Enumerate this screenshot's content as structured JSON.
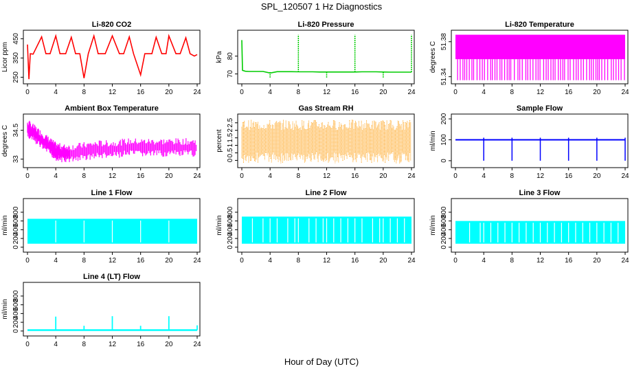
{
  "title": "SPL_120507  1 Hz Diagnostics",
  "xlabel": "Hour of Day (UTC)",
  "chart_data": [
    {
      "type": "line",
      "title": "Li-820 CO2",
      "ylabel": "Licor ppm",
      "color": "#ff0000",
      "xlim": [
        0,
        24
      ],
      "xticks": [
        0,
        4,
        8,
        12,
        16,
        20,
        24
      ],
      "ylim": [
        230,
        480
      ],
      "yticks": [
        250,
        350,
        450
      ],
      "x": [
        0,
        0.2,
        0.4,
        0.8,
        2,
        2.6,
        3.2,
        4,
        4.6,
        5.4,
        6.2,
        6.8,
        7.4,
        8,
        8.6,
        9.4,
        10,
        11,
        12,
        13,
        13.6,
        14.4,
        15,
        16,
        16.6,
        17.6,
        18.2,
        19,
        19.6,
        20,
        21,
        21.6,
        22.4,
        23,
        23.6,
        24
      ],
      "y": [
        420,
        240,
        372,
        370,
        460,
        372,
        372,
        465,
        372,
        372,
        458,
        372,
        372,
        245,
        372,
        465,
        372,
        372,
        465,
        372,
        372,
        460,
        372,
        262,
        372,
        372,
        458,
        372,
        372,
        465,
        372,
        372,
        455,
        372,
        360,
        368
      ]
    },
    {
      "type": "line",
      "title": "Li-820 Pressure",
      "ylabel": "kPa",
      "color": "#00cc00",
      "xlim": [
        0,
        24
      ],
      "xticks": [
        0,
        4,
        8,
        12,
        16,
        20,
        24
      ],
      "ylim": [
        66,
        93
      ],
      "yticks": [
        70,
        80
      ],
      "x": [
        0,
        0.1,
        0.5,
        1,
        2,
        3,
        4,
        5,
        6,
        7,
        8,
        9,
        10,
        11,
        12,
        13,
        14,
        15,
        16,
        17,
        18,
        19,
        20,
        21,
        22,
        23,
        24
      ],
      "y": [
        89,
        72,
        71.5,
        71.4,
        71.4,
        71.4,
        70.5,
        71.3,
        71.3,
        71.3,
        71.2,
        71.2,
        71.2,
        71.1,
        71.1,
        71.1,
        71.1,
        71.1,
        71.1,
        71.2,
        71.2,
        71.2,
        71.1,
        71.0,
        71.0,
        71.0,
        71.0
      ],
      "spikes": [
        {
          "x": 4,
          "y": 68
        },
        {
          "x": 8,
          "y": 92
        },
        {
          "x": 12,
          "y": 68
        },
        {
          "x": 16,
          "y": 92
        },
        {
          "x": 20,
          "y": 68
        },
        {
          "x": 24,
          "y": 92
        }
      ]
    },
    {
      "type": "line",
      "title": "Li-820 Temperature",
      "ylabel": "degrees C",
      "color": "#ff00ff",
      "xlim": [
        0,
        24
      ],
      "xticks": [
        0,
        4,
        8,
        12,
        16,
        20,
        24
      ],
      "ylim": [
        51.335,
        51.39
      ],
      "yticks": [
        51.34,
        51.38
      ],
      "upper": 51.388,
      "lower": 51.36,
      "min": 51.336
    },
    {
      "type": "line",
      "title": "Ambient Box Temperature",
      "ylabel": "degrees C",
      "color": "#ff00ff",
      "xlim": [
        0,
        24
      ],
      "xticks": [
        0,
        4,
        8,
        12,
        16,
        20,
        24
      ],
      "ylim": [
        32.7,
        35.2
      ],
      "yticks": [
        33.0,
        34.5
      ],
      "x": [
        0,
        1,
        2,
        3,
        4,
        5,
        6,
        8,
        10,
        12,
        14,
        16,
        18,
        20,
        22,
        24
      ],
      "y": [
        34.6,
        34.3,
        34.0,
        33.7,
        33.4,
        33.3,
        33.3,
        33.4,
        33.5,
        33.5,
        33.6,
        33.6,
        33.6,
        33.6,
        33.6,
        33.6
      ],
      "spread": 0.35
    },
    {
      "type": "line",
      "title": "Gas Stream RH",
      "ylabel": "percent",
      "color": "#ff9900",
      "xlim": [
        0,
        24
      ],
      "xticks": [
        0,
        4,
        8,
        12,
        16,
        20,
        24
      ],
      "ylim": [
        -0.3,
        2.9
      ],
      "yticks": [
        0.0,
        0.5,
        1.0,
        1.5,
        2.0,
        2.5
      ],
      "center": 1.3,
      "high": 2.7,
      "low": -0.2
    },
    {
      "type": "line",
      "title": "Sample Flow",
      "ylabel": "ml/min",
      "color": "#0000ff",
      "xlim": [
        0,
        24
      ],
      "xticks": [
        0,
        4,
        8,
        12,
        16,
        20,
        24
      ],
      "ylim": [
        -20,
        210
      ],
      "yticks": [
        0,
        100,
        200
      ],
      "baseline": 100,
      "dips": [
        4,
        8,
        12,
        16,
        20,
        24
      ],
      "dip_value": 0
    },
    {
      "type": "area",
      "title": "Line 1 Flow",
      "ylabel": "ml/min",
      "color": "#00ffff",
      "xlim": [
        0,
        24
      ],
      "xticks": [
        0,
        4,
        8,
        12,
        16,
        20,
        24
      ],
      "ylim": [
        -50,
        1050
      ],
      "yticks": [
        0,
        200,
        400,
        600,
        800
      ],
      "upper": 650,
      "lower": 80,
      "gaps": [
        4,
        8,
        12,
        16,
        20
      ]
    },
    {
      "type": "area",
      "title": "Line 2 Flow",
      "ylabel": "ml/min",
      "color": "#00ffff",
      "xlim": [
        0,
        24
      ],
      "xticks": [
        0,
        4,
        8,
        12,
        16,
        20,
        24
      ],
      "ylim": [
        -50,
        1050
      ],
      "yticks": [
        0,
        200,
        400,
        600,
        800
      ],
      "upper": 700,
      "lower": 80,
      "gaps": [
        1.5,
        3,
        4,
        5,
        6.5,
        7.5,
        8,
        9.5,
        10.5,
        11.5,
        12,
        13,
        14,
        15,
        16,
        17,
        18.5,
        19.5,
        20,
        21,
        22,
        23
      ]
    },
    {
      "type": "area",
      "title": "Line 3 Flow",
      "ylabel": "ml/min",
      "color": "#00ffff",
      "xlim": [
        0,
        24
      ],
      "xticks": [
        0,
        4,
        8,
        12,
        16,
        20,
        24
      ],
      "ylim": [
        -50,
        1050
      ],
      "yticks": [
        0,
        200,
        400,
        600,
        800
      ],
      "upper": 600,
      "lower": 80,
      "gaps": [
        2,
        3.5,
        4,
        5,
        6,
        7,
        8,
        9,
        10,
        11,
        12,
        13,
        14,
        15,
        16,
        17,
        18,
        19,
        20,
        21,
        22,
        23
      ]
    },
    {
      "type": "line",
      "title": "Line 4 (LT) Flow",
      "ylabel": "ml/min",
      "color": "#00ffff",
      "xlim": [
        0,
        24
      ],
      "xticks": [
        0,
        4,
        8,
        12,
        16,
        20,
        24
      ],
      "ylim": [
        -50,
        1050
      ],
      "yticks": [
        0,
        200,
        400,
        600,
        800
      ],
      "baseline": 20,
      "spikes": [
        {
          "x": 4,
          "y": 330
        },
        {
          "x": 8,
          "y": 120
        },
        {
          "x": 12,
          "y": 340
        },
        {
          "x": 16,
          "y": 120
        },
        {
          "x": 20,
          "y": 340
        },
        {
          "x": 24,
          "y": 130
        }
      ]
    }
  ]
}
